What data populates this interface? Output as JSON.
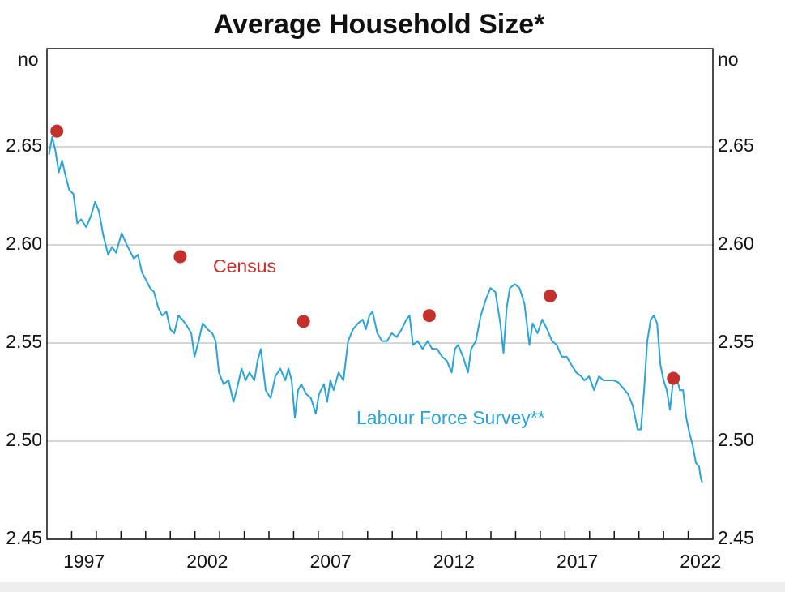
{
  "chart_data": {
    "type": "line",
    "title": "Average Household Size*",
    "ylabel": "no",
    "y2label": "no",
    "xlim": [
      1996,
      2023
    ],
    "xticks": [
      {
        "value": 1997.5,
        "label": "1997"
      },
      {
        "value": 2002.5,
        "label": "2002"
      },
      {
        "value": 2007.5,
        "label": "2007"
      },
      {
        "value": 2012.5,
        "label": "2012"
      },
      {
        "value": 2017.5,
        "label": "2017"
      },
      {
        "value": 2022.5,
        "label": "2022"
      }
    ],
    "xminor": [
      1997,
      1998,
      1999,
      2000,
      2001,
      2002,
      2003,
      2004,
      2005,
      2006,
      2007,
      2008,
      2009,
      2010,
      2011,
      2012,
      2013,
      2014,
      2015,
      2016,
      2017,
      2018,
      2019,
      2020,
      2021,
      2022
    ],
    "ylim": [
      2.45,
      2.7
    ],
    "yticks": [
      2.45,
      {
        "value": 2.5,
        "label": "2.50"
      },
      2.55,
      {
        "value": 2.6,
        "label": "2.60"
      },
      2.65
    ],
    "y2lim": [
      2.45,
      2.7
    ],
    "y2ticks": [
      2.45,
      {
        "value": 2.5,
        "label": "2.50"
      },
      2.55,
      {
        "value": 2.6,
        "label": "2.60"
      },
      2.65
    ],
    "grid": true,
    "series": [
      {
        "name": "Labour Force Survey**",
        "mode": "lines",
        "color": "#2ba3d6",
        "x": [
          1996.08,
          1996.21,
          1996.34,
          1996.48,
          1996.61,
          1996.74,
          1996.9,
          1997.07,
          1997.23,
          1997.39,
          1997.59,
          1997.79,
          1997.95,
          1998.11,
          1998.28,
          1998.48,
          1998.64,
          1998.8,
          1999.03,
          1999.2,
          1999.36,
          1999.52,
          1999.69,
          1999.85,
          2000.02,
          2000.18,
          2000.34,
          2000.51,
          2000.67,
          2000.84,
          2001.0,
          2001.16,
          2001.33,
          2001.49,
          2001.66,
          2001.85,
          2001.98,
          2002.15,
          2002.31,
          2002.51,
          2002.7,
          2002.84,
          2002.97,
          2003.16,
          2003.36,
          2003.56,
          2003.69,
          2003.89,
          2004.05,
          2004.21,
          2004.41,
          2004.54,
          2004.67,
          2004.87,
          2005.07,
          2005.26,
          2005.46,
          2005.66,
          2005.79,
          2005.92,
          2006.05,
          2006.18,
          2006.31,
          2006.51,
          2006.7,
          2006.9,
          2007.03,
          2007.23,
          2007.36,
          2007.49,
          2007.62,
          2007.82,
          2008.02,
          2008.21,
          2008.41,
          2008.61,
          2008.8,
          2008.93,
          2009.07,
          2009.2,
          2009.39,
          2009.59,
          2009.79,
          2009.98,
          2010.18,
          2010.38,
          2010.57,
          2010.7,
          2010.84,
          2011.03,
          2011.23,
          2011.43,
          2011.62,
          2011.82,
          2012.02,
          2012.21,
          2012.41,
          2012.54,
          2012.67,
          2012.87,
          2013.07,
          2013.2,
          2013.39,
          2013.59,
          2013.79,
          2013.98,
          2014.18,
          2014.38,
          2014.51,
          2014.64,
          2014.77,
          2014.97,
          2015.16,
          2015.36,
          2015.56,
          2015.69,
          2015.89,
          2016.08,
          2016.28,
          2016.48,
          2016.67,
          2016.87,
          2017.07,
          2017.26,
          2017.46,
          2017.66,
          2017.79,
          2017.98,
          2018.18,
          2018.38,
          2018.57,
          2018.77,
          2018.97,
          2019.16,
          2019.36,
          2019.56,
          2019.75,
          2019.95,
          2020.08,
          2020.21,
          2020.34,
          2020.48,
          2020.61,
          2020.74,
          2020.87,
          2021.0,
          2021.13,
          2021.26,
          2021.39,
          2021.52,
          2021.66,
          2021.79,
          2021.92,
          2022.05,
          2022.18,
          2022.31,
          2022.44,
          2022.51,
          2022.57
        ],
        "values": [
          2.646,
          2.655,
          2.648,
          2.637,
          2.643,
          2.636,
          2.628,
          2.626,
          2.611,
          2.613,
          2.609,
          2.615,
          2.622,
          2.617,
          2.605,
          2.595,
          2.599,
          2.596,
          2.606,
          2.601,
          2.597,
          2.593,
          2.595,
          2.586,
          2.582,
          2.578,
          2.576,
          2.568,
          2.564,
          2.566,
          2.557,
          2.555,
          2.564,
          2.562,
          2.559,
          2.555,
          2.543,
          2.551,
          2.56,
          2.557,
          2.555,
          2.551,
          2.535,
          2.529,
          2.531,
          2.52,
          2.526,
          2.537,
          2.531,
          2.535,
          2.531,
          2.541,
          2.547,
          2.526,
          2.522,
          2.533,
          2.537,
          2.531,
          2.537,
          2.531,
          2.512,
          2.526,
          2.529,
          2.524,
          2.522,
          2.514,
          2.524,
          2.529,
          2.52,
          2.531,
          2.526,
          2.535,
          2.531,
          2.551,
          2.557,
          2.56,
          2.562,
          2.557,
          2.564,
          2.566,
          2.555,
          2.551,
          2.551,
          2.555,
          2.553,
          2.557,
          2.562,
          2.564,
          2.549,
          2.551,
          2.547,
          2.551,
          2.547,
          2.547,
          2.543,
          2.541,
          2.535,
          2.547,
          2.549,
          2.543,
          2.535,
          2.547,
          2.551,
          2.564,
          2.572,
          2.578,
          2.576,
          2.56,
          2.545,
          2.568,
          2.578,
          2.58,
          2.578,
          2.57,
          2.549,
          2.56,
          2.555,
          2.562,
          2.557,
          2.551,
          2.549,
          2.543,
          2.543,
          2.539,
          2.535,
          2.533,
          2.531,
          2.533,
          2.526,
          2.533,
          2.531,
          2.531,
          2.531,
          2.53,
          2.527,
          2.524,
          2.518,
          2.506,
          2.506,
          2.526,
          2.551,
          2.562,
          2.564,
          2.56,
          2.539,
          2.531,
          2.526,
          2.516,
          2.531,
          2.533,
          2.526,
          2.526,
          2.512,
          2.504,
          2.498,
          2.489,
          2.487,
          2.481,
          2.479
        ]
      },
      {
        "name": "Census",
        "mode": "markers",
        "color": "#c4302b",
        "x": [
          1996.4,
          2001.4,
          2006.4,
          2011.5,
          2016.4,
          2021.4
        ],
        "values": [
          2.658,
          2.594,
          2.561,
          2.564,
          2.574,
          2.532
        ]
      }
    ]
  }
}
